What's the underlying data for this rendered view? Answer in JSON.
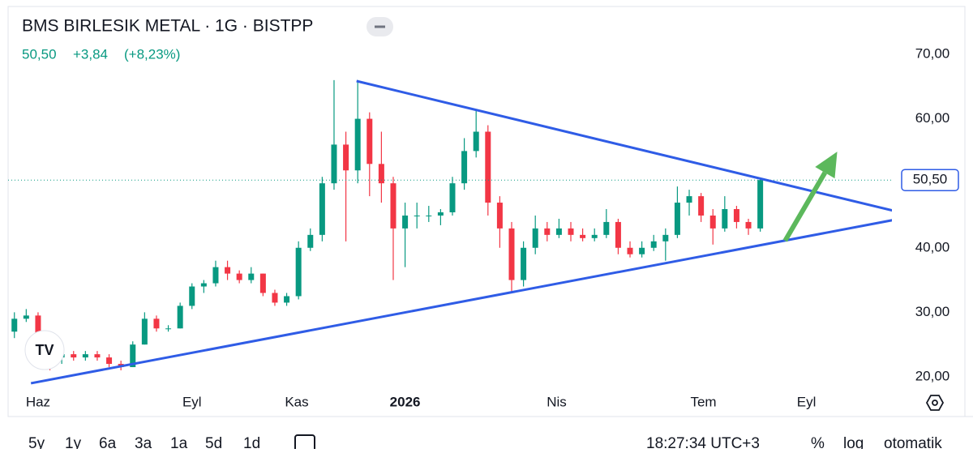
{
  "chart_data": {
    "type": "candlestick",
    "title": "BMS BIRLESIK METAL · 1G · BISTPP",
    "price_text": "50,50",
    "change_text": "+3,84",
    "change_pct_text": "(+8,23%)",
    "x": [
      -2,
      -1,
      0,
      1,
      2,
      3,
      4,
      5,
      6,
      7,
      8,
      9,
      10,
      11,
      12,
      13,
      14,
      15,
      16,
      17,
      18,
      19,
      20,
      21,
      22,
      23,
      24,
      25,
      26,
      27,
      28,
      29,
      30,
      31,
      32,
      33,
      34,
      35,
      36,
      37,
      38,
      39,
      40,
      41,
      42,
      43,
      44,
      45,
      46,
      47,
      48,
      49,
      50,
      51,
      52,
      53,
      54,
      55,
      56,
      57,
      58,
      59,
      60,
      61
    ],
    "open": [
      27,
      29,
      29.5,
      26.5,
      23,
      23.5,
      23,
      23.5,
      23,
      22,
      21.5,
      25,
      29,
      27.5,
      27.5,
      31,
      34,
      34.5,
      37,
      36,
      35,
      36,
      33,
      31.5,
      32.5,
      40,
      42,
      50,
      56,
      52,
      60,
      53,
      50,
      43,
      45,
      45,
      45,
      45.5,
      50,
      55,
      58,
      47,
      43,
      35,
      40,
      43,
      42,
      43,
      42,
      41.5,
      42,
      44,
      40,
      39,
      40,
      41,
      42,
      47,
      48,
      45,
      43,
      46,
      44,
      43
    ],
    "high": [
      30,
      30.5,
      30,
      27,
      24,
      24,
      24,
      24,
      23.5,
      22.5,
      25.5,
      30,
      29.5,
      28,
      31.5,
      34.5,
      35,
      38,
      38,
      36.5,
      37,
      36,
      33.5,
      33,
      41,
      43,
      51,
      66,
      58,
      66,
      61,
      58,
      51,
      47,
      47,
      46.5,
      46,
      51,
      57,
      61.5,
      59,
      48,
      44,
      41,
      45,
      44,
      44.5,
      44,
      43,
      43,
      46,
      44.5,
      41,
      41,
      42,
      43,
      49.5,
      49,
      48.5,
      46,
      48,
      46.5,
      44.5,
      50.7
    ],
    "low": [
      26,
      28.5,
      26,
      21,
      22,
      22.5,
      22.5,
      22.5,
      21.5,
      21,
      21.5,
      25,
      27,
      27,
      27.5,
      30.5,
      33,
      34,
      35,
      34.5,
      34.5,
      32.5,
      31,
      31,
      32,
      39.5,
      41,
      49,
      41,
      50,
      48,
      47,
      35,
      37,
      43,
      44,
      43.5,
      45,
      49,
      54,
      45,
      40,
      33,
      34,
      39,
      41,
      41.5,
      41,
      41,
      41,
      41.5,
      39,
      38.5,
      38.5,
      39.5,
      38,
      41.5,
      45,
      44,
      40.5,
      42.5,
      43,
      42,
      42.5
    ],
    "close": [
      29,
      29.5,
      26.5,
      23,
      23.5,
      23,
      23.5,
      23,
      22,
      21.5,
      25,
      29,
      27.5,
      27.5,
      31,
      34,
      34.5,
      37,
      36,
      35,
      36,
      33,
      31.5,
      32.5,
      40,
      42,
      50,
      56,
      52,
      60,
      53,
      50,
      43,
      45,
      45,
      45,
      45.5,
      50,
      55,
      58,
      47,
      43,
      35,
      40,
      43,
      42,
      43,
      42,
      41.5,
      42,
      44,
      40,
      39,
      40,
      41,
      42,
      47,
      48,
      45,
      43,
      46,
      44,
      43,
      50.5
    ],
    "up_color": "#089981",
    "down_color": "#f23645",
    "xlim": [
      -2.53,
      72.12
    ],
    "xticks": [
      {
        "value": 0,
        "label": "Haz"
      },
      {
        "value": 13,
        "label": "Eyl"
      },
      {
        "value": 21.85,
        "label": "Kas"
      },
      {
        "value": 31,
        "label": "2026"
      },
      {
        "value": 43.8,
        "label": "Nis"
      },
      {
        "value": 56.2,
        "label": "Tem"
      },
      {
        "value": 64.9,
        "label": "Eyl"
      }
    ],
    "ylim": [
      17.86,
      77.41
    ],
    "yticks": [
      {
        "value": 20,
        "label": "20,00"
      },
      {
        "value": 30,
        "label": "30,00"
      },
      {
        "value": 40,
        "label": "40,00"
      },
      {
        "value": 60,
        "label": "60,00"
      },
      {
        "value": 70,
        "label": "70,00"
      }
    ],
    "last_price": {
      "value": 50.5,
      "label": "50,50"
    },
    "trend_lines": [
      {
        "color": "#2f5ce6",
        "x": [
          26.9,
          72.8
        ],
        "y": [
          65.85,
          45.5
        ]
      },
      {
        "color": "#2f5ce6",
        "x": [
          -0.6,
          72.8
        ],
        "y": [
          19.0,
          44.5
        ]
      }
    ],
    "arrow": {
      "color": "#5cb85c",
      "x": [
        63.1,
        67.5
      ],
      "y": [
        41.1,
        54.9
      ]
    },
    "timeframes": [
      "5y",
      "1y",
      "6a",
      "3a",
      "1a",
      "5d",
      "1d"
    ],
    "clock": "18:27:34 UTC+3",
    "percent": "%",
    "log": "log",
    "auto": "otomatik"
  }
}
